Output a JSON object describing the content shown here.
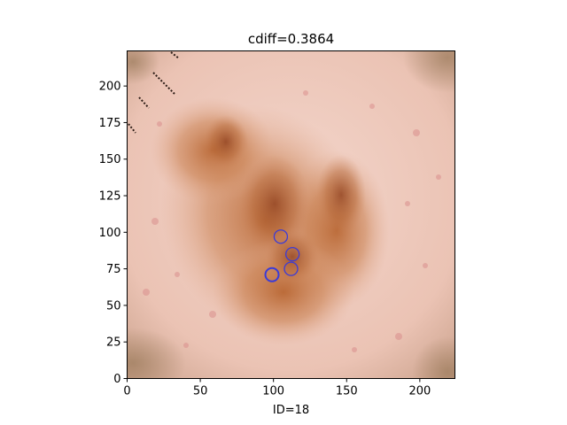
{
  "chart_data": {
    "type": "scatter",
    "title": "cdiff=0.3864",
    "xlabel": "ID=18",
    "ylabel": "",
    "xlim": [
      0,
      224
    ],
    "ylim": [
      0,
      224
    ],
    "x_ticks": [
      0,
      50,
      100,
      150,
      200
    ],
    "y_ticks": [
      0,
      25,
      50,
      75,
      100,
      125,
      150,
      175,
      200
    ],
    "grid": false,
    "background": "dermoscopy image of a pigmented skin lesion",
    "series": [
      {
        "marker": "circle",
        "color": "#3b3bd8",
        "points": [
          {
            "x": 105,
            "y": 97
          },
          {
            "x": 113,
            "y": 85
          },
          {
            "x": 112,
            "y": 75
          },
          {
            "x": 99,
            "y": 71
          }
        ]
      }
    ]
  }
}
